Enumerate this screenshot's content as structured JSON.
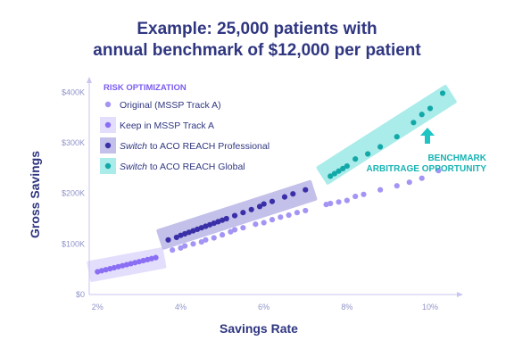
{
  "chart_data": {
    "type": "scatter",
    "title_lines": [
      "Example: 25,000 patients with",
      "annual benchmark of $12,000 per patient"
    ],
    "xlabel": "Savings Rate",
    "ylabel": "Gross Savings",
    "x_ticks": [
      "2%",
      "4%",
      "6%",
      "8%",
      "10%"
    ],
    "y_ticks": [
      "$0",
      "$100K",
      "$200K",
      "$300K",
      "$400K"
    ],
    "xlim": [
      1.8,
      10.6
    ],
    "ylim": [
      0,
      420
    ],
    "legend_heading": "RISK OPTIMIZATION",
    "legend": [
      {
        "prefix": "",
        "label": "Original (MSSP Track A)",
        "color": "#a395f4",
        "box": false,
        "box_color": ""
      },
      {
        "prefix": "",
        "label": "Keep in MSSP Track A",
        "prefix_italic": false,
        "color": "#8a6ff4",
        "box": true,
        "box_color": "#e4defd"
      },
      {
        "prefix": "Switch",
        "label": " to ACO REACH Professional",
        "color": "#3b2fa8",
        "box": true,
        "box_color": "#c3c1ea"
      },
      {
        "prefix": "Switch",
        "label": " to ACO REACH Global",
        "color": "#13a8a8",
        "box": true,
        "box_color": "#a9ecea"
      }
    ],
    "annotation_lines": [
      "BENCHMARK",
      "ARBITRAGE OPPORTUNITY"
    ],
    "colors": {
      "original": "#a395f4",
      "keep": "#8a6ff4",
      "professional": "#3b2fa8",
      "global": "#13a8a8",
      "axis": "#c9c6f0",
      "arrow": "#1fc4c4"
    },
    "series": [
      {
        "name": "Original (MSSP Track A)",
        "points": [
          [
            3.8,
            88
          ],
          [
            4.0,
            92
          ],
          [
            4.1,
            96
          ],
          [
            4.3,
            100
          ],
          [
            4.5,
            104
          ],
          [
            4.6,
            108
          ],
          [
            4.8,
            112
          ],
          [
            5.0,
            118
          ],
          [
            5.2,
            124
          ],
          [
            5.3,
            128
          ],
          [
            5.5,
            132
          ],
          [
            5.8,
            139
          ],
          [
            6.0,
            142
          ],
          [
            6.2,
            148
          ],
          [
            6.4,
            153
          ],
          [
            6.6,
            157
          ],
          [
            6.8,
            162
          ],
          [
            7.0,
            166
          ],
          [
            7.5,
            178
          ],
          [
            7.6,
            180
          ],
          [
            7.8,
            183
          ],
          [
            8.0,
            186
          ],
          [
            8.2,
            194
          ],
          [
            8.4,
            198
          ],
          [
            8.8,
            207
          ],
          [
            9.2,
            215
          ],
          [
            9.5,
            222
          ],
          [
            9.8,
            230
          ],
          [
            10.2,
            245
          ]
        ]
      },
      {
        "name": "Keep in MSSP Track A",
        "points": [
          [
            2.0,
            45
          ],
          [
            2.1,
            47
          ],
          [
            2.2,
            49
          ],
          [
            2.3,
            51
          ],
          [
            2.4,
            53
          ],
          [
            2.5,
            55
          ],
          [
            2.6,
            57
          ],
          [
            2.7,
            59
          ],
          [
            2.8,
            61
          ],
          [
            2.9,
            63
          ],
          [
            3.0,
            65
          ],
          [
            3.1,
            67
          ],
          [
            3.2,
            69
          ],
          [
            3.3,
            71
          ],
          [
            3.4,
            73
          ]
        ]
      },
      {
        "name": "Switch to ACO REACH Professional",
        "points": [
          [
            3.7,
            108
          ],
          [
            3.9,
            113
          ],
          [
            4.0,
            117
          ],
          [
            4.1,
            120
          ],
          [
            4.2,
            123
          ],
          [
            4.3,
            126
          ],
          [
            4.4,
            129
          ],
          [
            4.5,
            132
          ],
          [
            4.6,
            135
          ],
          [
            4.7,
            138
          ],
          [
            4.8,
            141
          ],
          [
            4.9,
            144
          ],
          [
            5.0,
            147
          ],
          [
            5.1,
            150
          ],
          [
            5.3,
            156
          ],
          [
            5.5,
            162
          ],
          [
            5.7,
            168
          ],
          [
            5.9,
            174
          ],
          [
            6.0,
            179
          ],
          [
            6.2,
            184
          ],
          [
            6.5,
            193
          ],
          [
            6.7,
            199
          ],
          [
            7.0,
            207
          ]
        ]
      },
      {
        "name": "Switch to ACO REACH Global",
        "points": [
          [
            7.6,
            234
          ],
          [
            7.7,
            239
          ],
          [
            7.8,
            244
          ],
          [
            7.9,
            249
          ],
          [
            8.0,
            254
          ],
          [
            8.2,
            268
          ],
          [
            8.5,
            278
          ],
          [
            8.8,
            292
          ],
          [
            9.2,
            312
          ],
          [
            9.6,
            340
          ],
          [
            9.8,
            356
          ],
          [
            10.0,
            368
          ],
          [
            10.3,
            398
          ]
        ]
      }
    ]
  }
}
